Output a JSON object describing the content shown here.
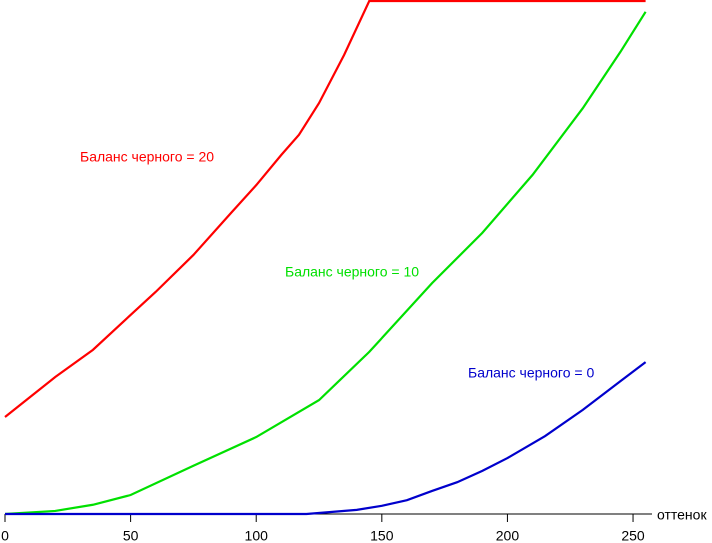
{
  "chart_data": {
    "type": "line",
    "x_label": "оттенок",
    "xlim": [
      0,
      255
    ],
    "xticks": [
      0,
      50,
      100,
      150,
      200,
      250
    ],
    "ylim": [
      0,
      100
    ],
    "series": [
      {
        "name": "Баланс черного = 20",
        "color": "#ff0000",
        "x": [
          0,
          10,
          20,
          35,
          50,
          60,
          75,
          90,
          100,
          110,
          117,
          125,
          135,
          145,
          255
        ],
        "values": [
          18.9,
          22.8,
          26.7,
          32,
          38.8,
          43.3,
          50.5,
          58.7,
          64.1,
          70,
          73.9,
          80.1,
          89.5,
          100,
          100
        ]
      },
      {
        "name": "Баланс черного = 10",
        "color": "#00e000",
        "x": [
          0,
          20,
          35,
          50,
          75,
          100,
          125,
          145,
          170,
          190,
          210,
          230,
          245,
          255
        ],
        "values": [
          0,
          0.6,
          1.8,
          3.7,
          9.4,
          15,
          22.2,
          31.6,
          45,
          54.8,
          66.1,
          79.1,
          90.1,
          97.9
        ]
      },
      {
        "name": "Баланс черного = 0",
        "color": "#0000cc",
        "x": [
          0,
          120,
          140,
          150,
          160,
          170,
          180,
          190,
          200,
          215,
          230,
          245,
          255
        ],
        "values": [
          0,
          0,
          0.8,
          1.6,
          2.7,
          4.5,
          6.2,
          8.4,
          10.9,
          15.2,
          20.3,
          25.9,
          29.6
        ]
      }
    ]
  }
}
